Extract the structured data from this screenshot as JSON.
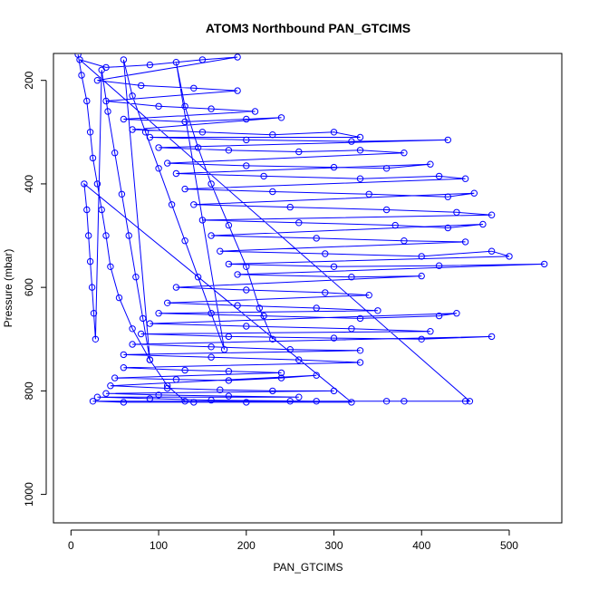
{
  "chart_data": {
    "type": "scatter",
    "title": "ATOM3 Northbound PAN_GTCIMS",
    "xlabel": "PAN_GTCIMS",
    "ylabel": "Pressure (mbar)",
    "xlim": [
      -20,
      560
    ],
    "ylim": [
      1055,
      148
    ],
    "y_reversed": true,
    "x_ticks": [
      0,
      100,
      200,
      300,
      400,
      500
    ],
    "y_ticks": [
      200,
      400,
      600,
      800,
      1000
    ],
    "grid": false,
    "legend": "none",
    "marker": "open-circle",
    "connected": true,
    "color": "#0000ff",
    "series": [
      {
        "points": [
          [
            8,
            150
          ],
          [
            12,
            190
          ],
          [
            18,
            240
          ],
          [
            22,
            300
          ],
          [
            25,
            350
          ],
          [
            30,
            400
          ],
          [
            35,
            450
          ],
          [
            40,
            500
          ],
          [
            45,
            560
          ],
          [
            55,
            620
          ],
          [
            70,
            680
          ],
          [
            90,
            740
          ],
          [
            110,
            790
          ],
          [
            130,
            820
          ],
          [
            250,
            820
          ],
          [
            380,
            820
          ],
          [
            455,
            820
          ],
          [
            10,
            160
          ],
          [
            40,
            175
          ],
          [
            90,
            170
          ],
          [
            150,
            160
          ],
          [
            190,
            155
          ],
          [
            30,
            200
          ],
          [
            80,
            210
          ],
          [
            140,
            215
          ],
          [
            190,
            220
          ],
          [
            40,
            240
          ],
          [
            100,
            250
          ],
          [
            160,
            255
          ],
          [
            210,
            260
          ],
          [
            60,
            275
          ],
          [
            130,
            280
          ],
          [
            200,
            275
          ],
          [
            240,
            272
          ],
          [
            70,
            295
          ],
          [
            150,
            300
          ],
          [
            230,
            305
          ],
          [
            300,
            300
          ],
          [
            330,
            310
          ],
          [
            90,
            310
          ],
          [
            200,
            315
          ],
          [
            320,
            318
          ],
          [
            430,
            315
          ],
          [
            100,
            330
          ],
          [
            180,
            335
          ],
          [
            260,
            338
          ],
          [
            330,
            335
          ],
          [
            380,
            340
          ],
          [
            110,
            360
          ],
          [
            200,
            365
          ],
          [
            300,
            368
          ],
          [
            360,
            370
          ],
          [
            410,
            362
          ],
          [
            120,
            380
          ],
          [
            220,
            385
          ],
          [
            330,
            390
          ],
          [
            420,
            385
          ],
          [
            450,
            390
          ],
          [
            130,
            410
          ],
          [
            230,
            415
          ],
          [
            340,
            420
          ],
          [
            430,
            425
          ],
          [
            460,
            418
          ],
          [
            140,
            440
          ],
          [
            250,
            445
          ],
          [
            360,
            450
          ],
          [
            440,
            455
          ],
          [
            480,
            460
          ],
          [
            150,
            470
          ],
          [
            260,
            475
          ],
          [
            370,
            480
          ],
          [
            430,
            485
          ],
          [
            470,
            478
          ],
          [
            160,
            500
          ],
          [
            280,
            505
          ],
          [
            380,
            510
          ],
          [
            450,
            512
          ],
          [
            170,
            530
          ],
          [
            290,
            535
          ],
          [
            400,
            540
          ],
          [
            480,
            530
          ],
          [
            500,
            540
          ],
          [
            180,
            555
          ],
          [
            300,
            560
          ],
          [
            420,
            558
          ],
          [
            540,
            555
          ],
          [
            190,
            575
          ],
          [
            320,
            580
          ],
          [
            400,
            578
          ],
          [
            120,
            600
          ],
          [
            200,
            605
          ],
          [
            290,
            610
          ],
          [
            340,
            615
          ],
          [
            110,
            630
          ],
          [
            190,
            635
          ],
          [
            280,
            640
          ],
          [
            350,
            645
          ],
          [
            100,
            650
          ],
          [
            220,
            655
          ],
          [
            330,
            660
          ],
          [
            420,
            655
          ],
          [
            440,
            650
          ],
          [
            90,
            670
          ],
          [
            200,
            675
          ],
          [
            320,
            680
          ],
          [
            410,
            685
          ],
          [
            80,
            690
          ],
          [
            180,
            695
          ],
          [
            300,
            698
          ],
          [
            400,
            700
          ],
          [
            480,
            695
          ],
          [
            70,
            710
          ],
          [
            160,
            715
          ],
          [
            250,
            720
          ],
          [
            330,
            722
          ],
          [
            60,
            730
          ],
          [
            160,
            735
          ],
          [
            260,
            740
          ],
          [
            330,
            745
          ],
          [
            60,
            755
          ],
          [
            130,
            760
          ],
          [
            180,
            762
          ],
          [
            240,
            765
          ],
          [
            50,
            775
          ],
          [
            120,
            778
          ],
          [
            180,
            780
          ],
          [
            240,
            775
          ],
          [
            280,
            770
          ],
          [
            45,
            790
          ],
          [
            110,
            795
          ],
          [
            170,
            798
          ],
          [
            230,
            800
          ],
          [
            300,
            800
          ],
          [
            40,
            805
          ],
          [
            100,
            808
          ],
          [
            180,
            810
          ],
          [
            260,
            812
          ],
          [
            30,
            812
          ],
          [
            90,
            815
          ],
          [
            160,
            818
          ],
          [
            280,
            820
          ],
          [
            360,
            820
          ],
          [
            450,
            820
          ],
          [
            25,
            820
          ],
          [
            60,
            822
          ],
          [
            140,
            822
          ],
          [
            200,
            822
          ],
          [
            320,
            822
          ],
          [
            15,
            400
          ],
          [
            18,
            450
          ],
          [
            20,
            500
          ],
          [
            22,
            550
          ],
          [
            24,
            600
          ],
          [
            26,
            650
          ],
          [
            28,
            700
          ],
          [
            35,
            180
          ],
          [
            42,
            260
          ],
          [
            50,
            340
          ],
          [
            58,
            420
          ],
          [
            66,
            500
          ],
          [
            74,
            580
          ],
          [
            82,
            660
          ],
          [
            90,
            740
          ],
          [
            60,
            160
          ],
          [
            70,
            230
          ],
          [
            85,
            300
          ],
          [
            100,
            370
          ],
          [
            115,
            440
          ],
          [
            130,
            510
          ],
          [
            145,
            580
          ],
          [
            160,
            650
          ],
          [
            175,
            720
          ],
          [
            120,
            165
          ],
          [
            130,
            250
          ],
          [
            145,
            330
          ],
          [
            160,
            400
          ],
          [
            180,
            480
          ],
          [
            200,
            560
          ],
          [
            215,
            640
          ],
          [
            230,
            700
          ]
        ]
      }
    ]
  }
}
